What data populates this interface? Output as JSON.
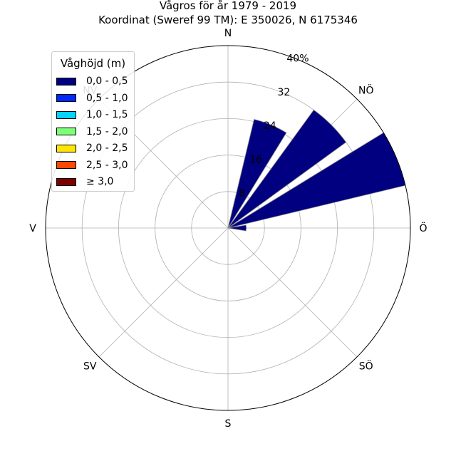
{
  "chart_data": {
    "type": "bar",
    "subtype": "polar-wave-rose",
    "title": "Vågros för år 1979 - 2019",
    "subtitle": "Koordinat (Sweref 99 TM): E 350026, N 6175346",
    "directions": [
      "N",
      "NÖ",
      "Ö",
      "SÖ",
      "S",
      "SV",
      "V",
      "NV"
    ],
    "radial_ticks": [
      "8",
      "16",
      "24",
      "32",
      "40%"
    ],
    "radial_tick_values": [
      8,
      16,
      24,
      32,
      40
    ],
    "rlim": [
      0,
      40
    ],
    "grid": true,
    "legend_title": "Våghöjd (m)",
    "legend_position": "top-left",
    "series": [
      {
        "name": "0,0 - 0,5",
        "color": "#000080"
      },
      {
        "name": "0,5 - 1,0",
        "color": "#0028ff"
      },
      {
        "name": "1,0 - 1,5",
        "color": "#00d4ff"
      },
      {
        "name": "1,5 - 2,0",
        "color": "#7dff7a"
      },
      {
        "name": "2,0 - 2,5",
        "color": "#ffe600"
      },
      {
        "name": "2,5 - 3,0",
        "color": "#ff4800"
      },
      {
        "name": "≥ 3,0",
        "color": "#800000"
      }
    ],
    "sectors": [
      {
        "direction_deg": 22.5,
        "value": 24.5
      },
      {
        "direction_deg": 45,
        "value": 32
      },
      {
        "direction_deg": 67.5,
        "value": 40
      },
      {
        "direction_deg": 90,
        "value": 4
      }
    ]
  }
}
